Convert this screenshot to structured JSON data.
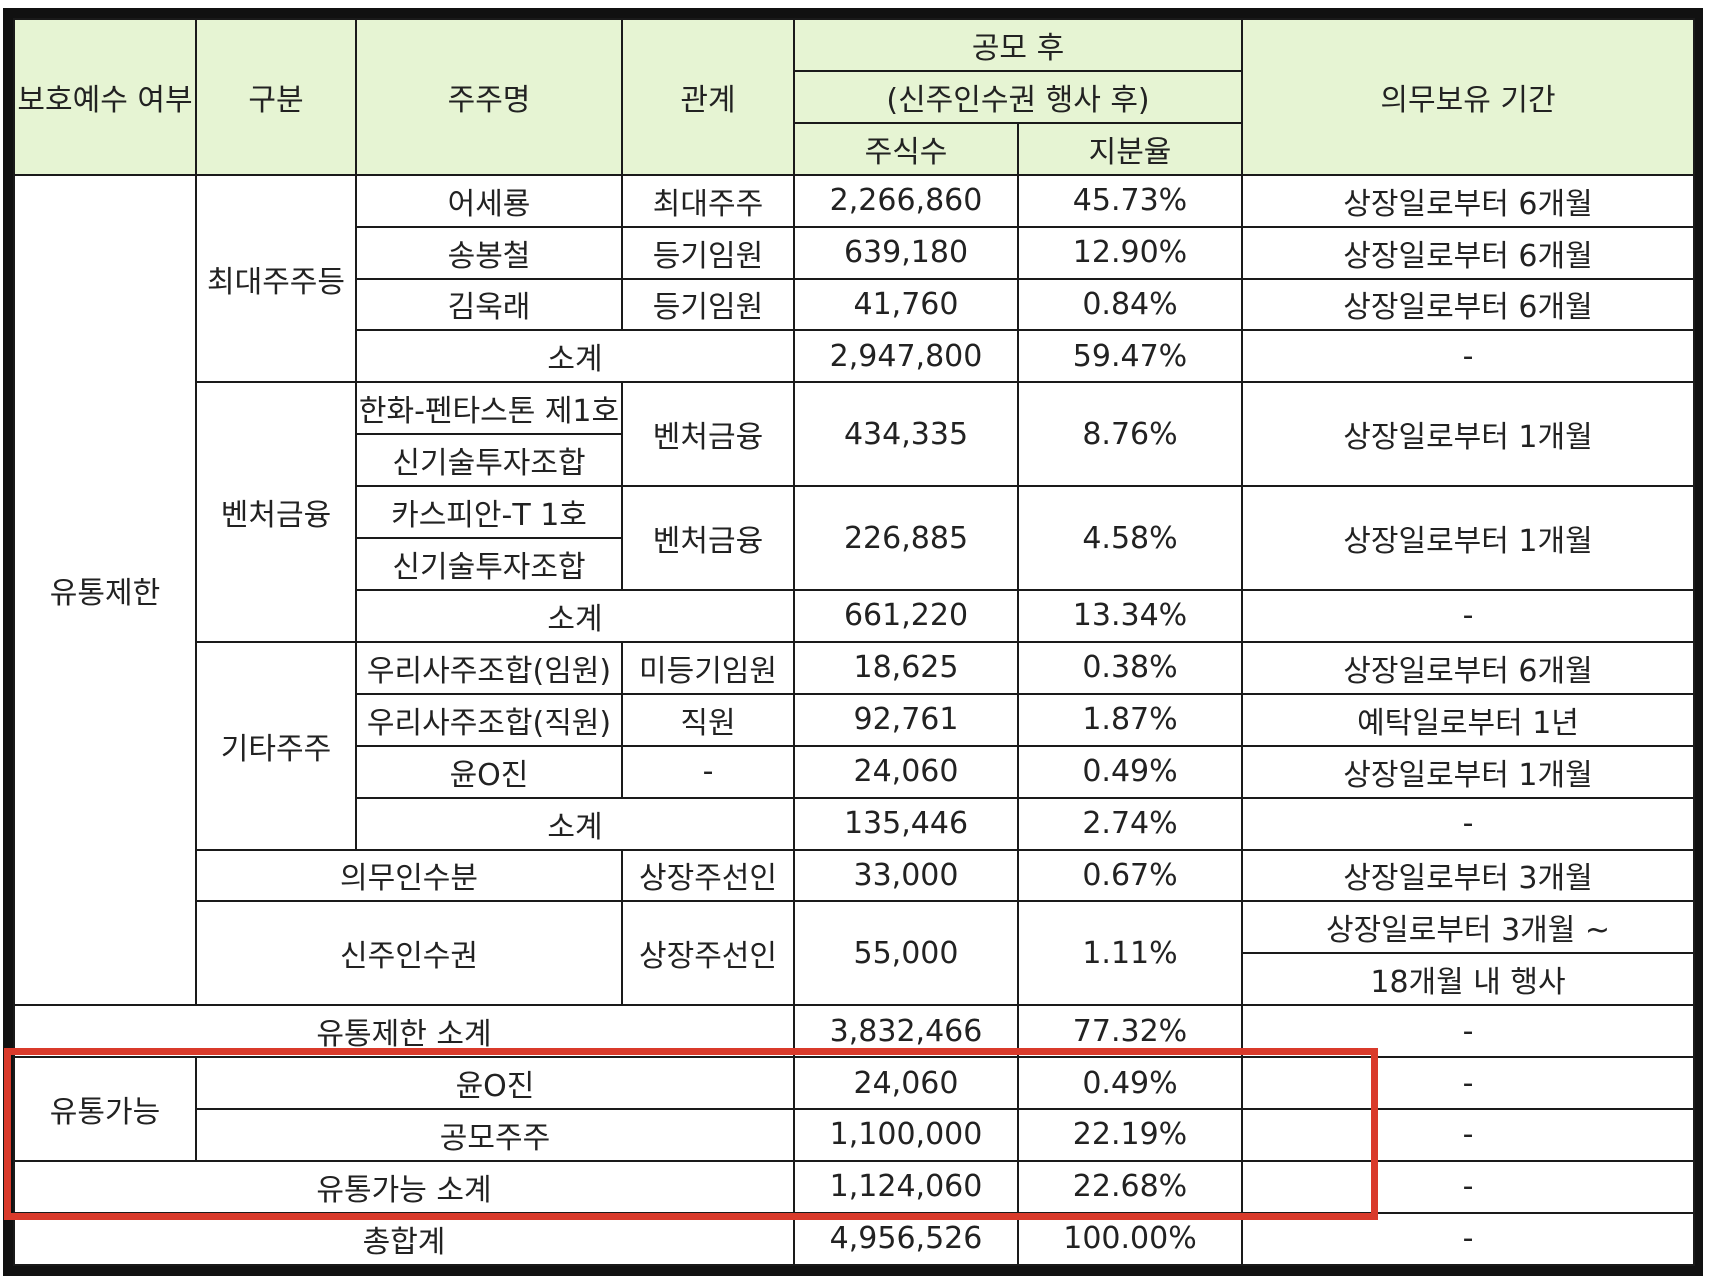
{
  "colors": {
    "header_bg": "#e6f4d3",
    "border": "#1a1a1a",
    "highlight": "#d93a2b"
  },
  "header": {
    "lockup": "보호예수 여부",
    "category": "구분",
    "shareholder": "주주명",
    "relation": "관계",
    "after_ipo": "공모 후",
    "after_warrant": "(신주인수권 행사 후)",
    "shares": "주식수",
    "ratio": "지분율",
    "period": "의무보유 기간"
  },
  "restricted": {
    "label": "유통제한",
    "major": {
      "label": "최대주주등",
      "rows": [
        {
          "name": "어세룡",
          "relation": "최대주주",
          "shares": "2,266,860",
          "ratio": "45.73%",
          "period": "상장일로부터 6개월"
        },
        {
          "name": "송봉철",
          "relation": "등기임원",
          "shares": "639,180",
          "ratio": "12.90%",
          "period": "상장일로부터 6개월"
        },
        {
          "name": "김욱래",
          "relation": "등기임원",
          "shares": "41,760",
          "ratio": "0.84%",
          "period": "상장일로부터 6개월"
        }
      ],
      "subtotal": {
        "label": "소계",
        "shares": "2,947,800",
        "ratio": "59.47%",
        "period": "-"
      }
    },
    "venture": {
      "label": "벤처금융",
      "groups": [
        {
          "name1": "한화-펜타스톤 제1호",
          "name2": "신기술투자조합",
          "relation": "벤처금융",
          "shares": "434,335",
          "ratio": "8.76%",
          "period": "상장일로부터 1개월"
        },
        {
          "name1": "카스피안-T 1호",
          "name2": "신기술투자조합",
          "relation": "벤처금융",
          "shares": "226,885",
          "ratio": "4.58%",
          "period": "상장일로부터 1개월"
        }
      ],
      "subtotal": {
        "label": "소계",
        "shares": "661,220",
        "ratio": "13.34%",
        "period": "-"
      }
    },
    "others": {
      "label": "기타주주",
      "rows": [
        {
          "name": "우리사주조합(임원)",
          "relation": "미등기임원",
          "shares": "18,625",
          "ratio": "0.38%",
          "period": "상장일로부터 6개월"
        },
        {
          "name": "우리사주조합(직원)",
          "relation": "직원",
          "shares": "92,761",
          "ratio": "1.87%",
          "period": "예탁일로부터 1년"
        },
        {
          "name": "윤O진",
          "relation": "-",
          "shares": "24,060",
          "ratio": "0.49%",
          "period": "상장일로부터 1개월"
        }
      ],
      "subtotal": {
        "label": "소계",
        "shares": "135,446",
        "ratio": "2.74%",
        "period": "-"
      }
    },
    "mandatory": {
      "label": "의무인수분",
      "relation": "상장주선인",
      "shares": "33,000",
      "ratio": "0.67%",
      "period": "상장일로부터 3개월"
    },
    "warrant": {
      "label": "신주인수권",
      "relation": "상장주선인",
      "shares": "55,000",
      "ratio": "1.11%",
      "period1": "상장일로부터 3개월 ~",
      "period2": "18개월 내 행사"
    },
    "subtotal": {
      "label": "유통제한 소계",
      "shares": "3,832,466",
      "ratio": "77.32%",
      "period": "-"
    }
  },
  "tradable": {
    "label": "유통가능",
    "rows": [
      {
        "name": "윤O진",
        "shares": "24,060",
        "ratio": "0.49%",
        "period": "-"
      },
      {
        "name": "공모주주",
        "shares": "1,100,000",
        "ratio": "22.19%",
        "period": "-"
      }
    ],
    "subtotal": {
      "label": "유통가능 소계",
      "shares": "1,124,060",
      "ratio": "22.68%",
      "period": "-"
    }
  },
  "total": {
    "label": "총합계",
    "shares": "4,956,526",
    "ratio": "100.00%",
    "period": "-"
  }
}
